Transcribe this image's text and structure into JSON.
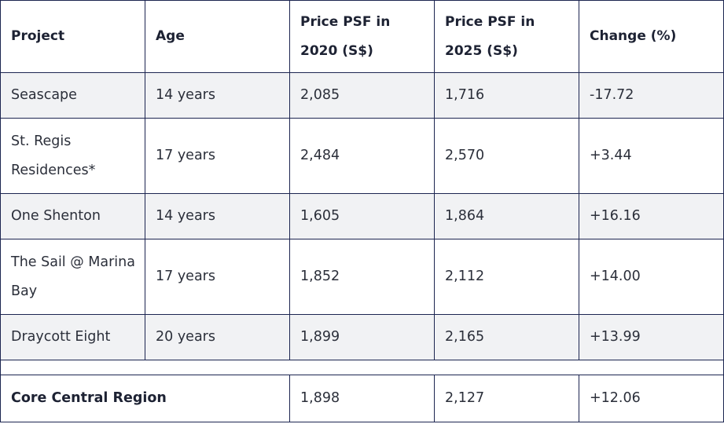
{
  "table": {
    "headers": [
      "Project",
      "Age",
      "Price PSF in 2020 (S$)",
      "Price PSF in 2025 (S$)",
      "Change (%)"
    ],
    "rows": [
      {
        "project": "Seascape",
        "age": "14 years",
        "psf2020": "2,085",
        "psf2025": "1,716",
        "change": "-17.72"
      },
      {
        "project": "St. Regis Residences*",
        "age": "17 years",
        "psf2020": "2,484",
        "psf2025": "2,570",
        "change": "+3.44"
      },
      {
        "project": "One Shenton",
        "age": "14 years",
        "psf2020": "1,605",
        "psf2025": "1,864",
        "change": "+16.16"
      },
      {
        "project": "The Sail @ Marina Bay",
        "age": "17 years",
        "psf2020": "1,852",
        "psf2025": "2,112",
        "change": "+14.00"
      },
      {
        "project": "Draycott Eight",
        "age": "20 years",
        "psf2020": "1,899",
        "psf2025": "2,165",
        "change": "+13.99"
      }
    ],
    "summary": {
      "label": "Core Central Region",
      "psf2020": "1,898",
      "psf2025": "2,127",
      "change": "+12.06"
    }
  }
}
